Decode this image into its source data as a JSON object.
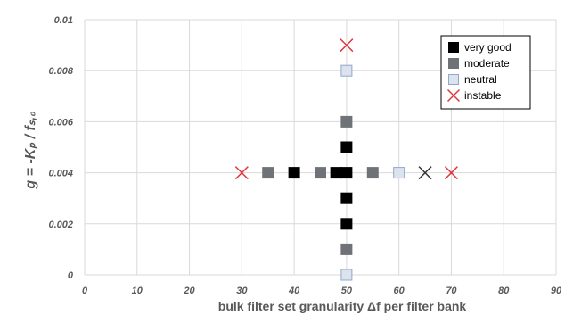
{
  "chart_data": {
    "type": "scatter",
    "xlabel": "bulk filter set granularity  Δf per filter bank",
    "ylabel": "g = -Kₚ / fₛ,₀",
    "xlim": [
      0,
      90
    ],
    "ylim": [
      0,
      0.01
    ],
    "x_ticks": [
      "0",
      "10",
      "20",
      "30",
      "40",
      "50",
      "60",
      "70",
      "80",
      "90"
    ],
    "y_ticks": [
      "0",
      "0.002",
      "0.004",
      "0.006",
      "0.008",
      "0.01"
    ],
    "grid": true,
    "legend_position": "top-right",
    "series": [
      {
        "name": "very good",
        "marker": "square",
        "color": "#000000",
        "points": [
          [
            40,
            0.004
          ],
          [
            48,
            0.004
          ],
          [
            50,
            0.004
          ],
          [
            50,
            0.002
          ],
          [
            50,
            0.003
          ],
          [
            50,
            0.005
          ]
        ]
      },
      {
        "name": "moderate",
        "marker": "square",
        "color": "#6f7378",
        "points": [
          [
            35,
            0.004
          ],
          [
            45,
            0.004
          ],
          [
            55,
            0.004
          ],
          [
            50,
            0.001
          ],
          [
            50,
            0.006
          ]
        ]
      },
      {
        "name": "neutral",
        "marker": "square",
        "color": "#dde3ec",
        "points": [
          [
            60,
            0.004
          ],
          [
            50,
            0
          ],
          [
            50,
            0.008
          ]
        ]
      },
      {
        "name": "instable",
        "marker": "x",
        "color": "#e0343c",
        "points": [
          [
            30,
            0.004
          ],
          [
            70,
            0.004
          ],
          [
            50,
            0.009
          ]
        ]
      },
      {
        "name": "",
        "marker": "x",
        "color": "#333333",
        "points": [
          [
            65,
            0.004
          ]
        ]
      }
    ]
  }
}
